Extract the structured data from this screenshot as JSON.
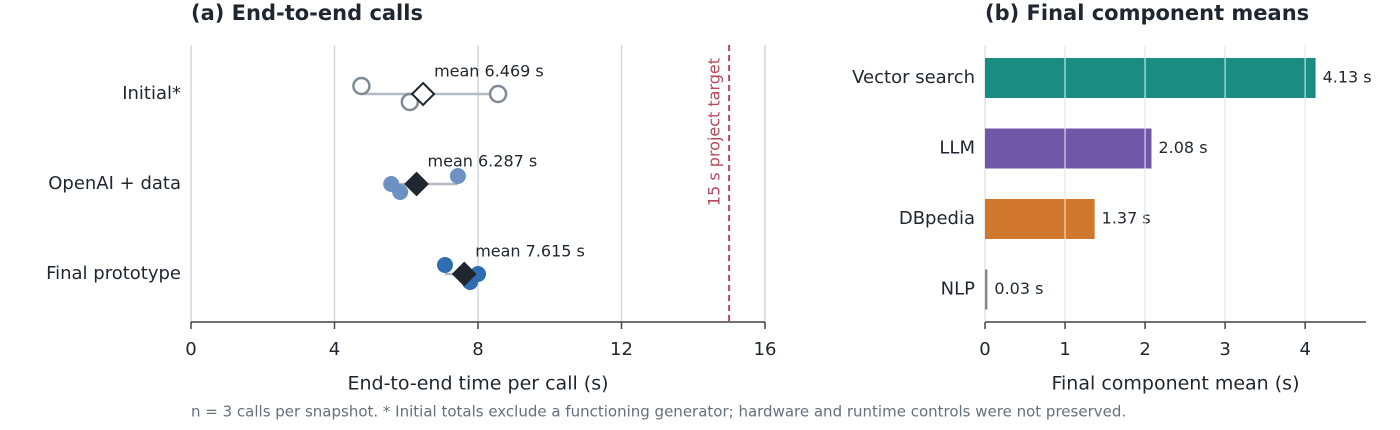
{
  "chart_data": [
    {
      "type": "dot",
      "title": "(a) End-to-end calls",
      "xlabel": "End-to-end time per call (s)",
      "xlim": [
        0,
        16
      ],
      "xticks": [
        0,
        4,
        8,
        12,
        16
      ],
      "grid": true,
      "series": [
        {
          "name": "Initial*",
          "color": "#7f8a96",
          "filled": false,
          "values": [
            4.75,
            6.1,
            8.56
          ],
          "mean": 6.469,
          "mean_label": "mean 6.469 s"
        },
        {
          "name": "OpenAI + data",
          "color": "#6d91c2",
          "filled": true,
          "values": [
            5.58,
            5.83,
            7.44
          ],
          "mean": 6.287,
          "mean_label": "mean 6.287 s"
        },
        {
          "name": "Final prototype",
          "color": "#2e6db0",
          "filled": true,
          "values": [
            7.08,
            8.0,
            7.78
          ],
          "mean": 7.615,
          "mean_label": "mean 7.615 s"
        }
      ],
      "target": {
        "value": 15,
        "label": "15 s project target",
        "color": "#b5485b"
      }
    },
    {
      "type": "hbar",
      "title": "(b) Final component means",
      "xlabel": "Final component mean (s)",
      "xlim": [
        0,
        4.76
      ],
      "xticks": [
        0,
        1,
        2,
        3,
        4
      ],
      "grid": true,
      "categories": [
        "Vector search",
        "LLM",
        "DBpedia",
        "NLP"
      ],
      "values": [
        4.13,
        2.08,
        1.37,
        0.03
      ],
      "value_labels": [
        "4.13 s",
        "2.08 s",
        "1.37 s",
        "0.03 s"
      ],
      "colors": [
        "#1a8c82",
        "#7157a7",
        "#d2772e",
        "#888888"
      ]
    }
  ],
  "footnote": "n = 3 calls per snapshot. * Initial totals exclude a functioning generator; hardware and runtime controls were not preserved."
}
